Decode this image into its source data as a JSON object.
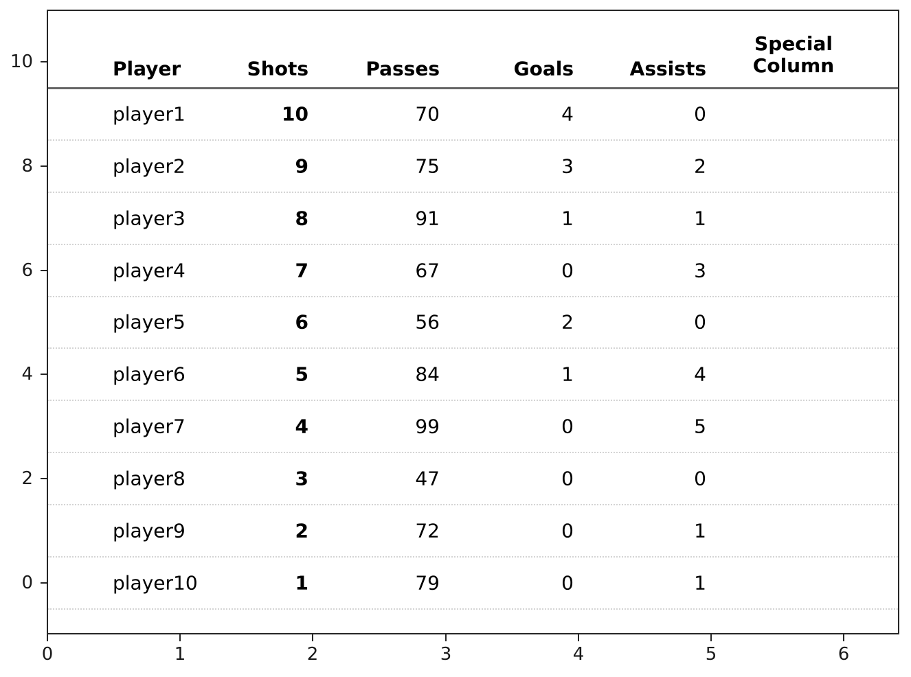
{
  "chart_data": {
    "type": "table",
    "title": "",
    "columns": [
      "Player",
      "Shots",
      "Passes",
      "Goals",
      "Assists",
      "Special Column"
    ],
    "rows": [
      {
        "player": "player1",
        "shots": "10",
        "passes": "70",
        "goals": "4",
        "assists": "0",
        "special": ""
      },
      {
        "player": "player2",
        "shots": "9",
        "passes": "75",
        "goals": "3",
        "assists": "2",
        "special": ""
      },
      {
        "player": "player3",
        "shots": "8",
        "passes": "91",
        "goals": "1",
        "assists": "1",
        "special": ""
      },
      {
        "player": "player4",
        "shots": "7",
        "passes": "67",
        "goals": "0",
        "assists": "3",
        "special": ""
      },
      {
        "player": "player5",
        "shots": "6",
        "passes": "56",
        "goals": "2",
        "assists": "0",
        "special": ""
      },
      {
        "player": "player6",
        "shots": "5",
        "passes": "84",
        "goals": "1",
        "assists": "4",
        "special": ""
      },
      {
        "player": "player7",
        "shots": "4",
        "passes": "99",
        "goals": "0",
        "assists": "5",
        "special": ""
      },
      {
        "player": "player8",
        "shots": "3",
        "passes": "47",
        "goals": "0",
        "assists": "0",
        "special": ""
      },
      {
        "player": "player9",
        "shots": "2",
        "passes": "72",
        "goals": "0",
        "assists": "1",
        "special": ""
      },
      {
        "player": "player10",
        "shots": "1",
        "passes": "79",
        "goals": "0",
        "assists": "1",
        "special": ""
      }
    ],
    "x_axis": {
      "tick_labels": [
        "0",
        "1",
        "2",
        "3",
        "4",
        "5",
        "6"
      ],
      "range": [
        0,
        6.4
      ]
    },
    "y_axis": {
      "tick_labels": [
        "10",
        "8",
        "6",
        "4",
        "2",
        "0"
      ],
      "range": [
        -1,
        11
      ]
    },
    "grid": "horizontal dotted row separators",
    "legend": "none",
    "style_notes": {
      "bold_columns": [
        "Shots"
      ],
      "empty_columns": [
        "Special Column"
      ]
    }
  },
  "colors": {
    "spine": "#262626",
    "row_separator": "#d4d4d4",
    "header_rule": "#666666",
    "text": "#000000"
  }
}
